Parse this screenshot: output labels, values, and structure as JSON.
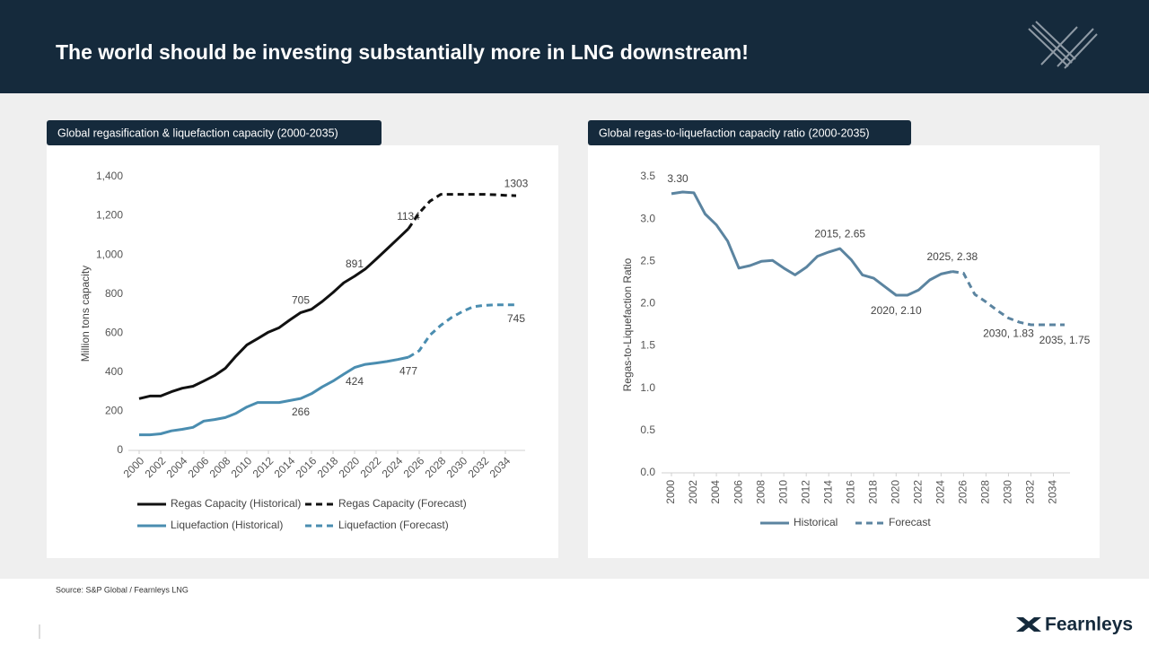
{
  "title": "The world should be investing substantially more in LNG downstream!",
  "source": "Source: S&P Global / Fearnleys LNG",
  "brand": "Fearnleys",
  "chart_data": [
    {
      "type": "line",
      "title": "Global regasification & liquefaction capacity (2000-2035)",
      "ylabel": "Million tons capacity",
      "xlim": [
        2000,
        2035
      ],
      "xticks": [
        2000,
        2002,
        2004,
        2006,
        2008,
        2010,
        2012,
        2014,
        2016,
        2018,
        2020,
        2022,
        2024,
        2026,
        2028,
        2030,
        2032,
        2034
      ],
      "ylim": [
        0,
        1400
      ],
      "yticks": [
        0,
        200,
        400,
        600,
        800,
        {
          "value": 1000,
          "label": "1,000"
        },
        {
          "value": 1200,
          "label": "1,200"
        },
        {
          "value": 1400,
          "label": "1,400"
        }
      ],
      "series": [
        {
          "name": "Regas Capacity (Historical)",
          "color": "#111111",
          "dash": false,
          "label_position": "above",
          "data_labels_x": [
            2015,
            2020,
            2025
          ],
          "x": [
            2000,
            2001,
            2002,
            2003,
            2004,
            2005,
            2006,
            2007,
            2008,
            2009,
            2010,
            2011,
            2012,
            2013,
            2014,
            2015,
            2016,
            2017,
            2018,
            2019,
            2020,
            2021,
            2022,
            2023,
            2024,
            2025
          ],
          "values": [
            265,
            278,
            278,
            300,
            318,
            328,
            355,
            383,
            420,
            483,
            540,
            572,
            605,
            628,
            668,
            705,
            722,
            762,
            808,
            858,
            891,
            928,
            978,
            1030,
            1082,
            1134
          ]
        },
        {
          "name": "Regas Capacity (Forecast)",
          "color": "#111111",
          "dash": true,
          "label_position": "above",
          "data_labels_x": [
            2035
          ],
          "x": [
            2025,
            2026,
            2027,
            2028,
            2029,
            2030,
            2031,
            2032,
            2033,
            2034,
            2035
          ],
          "values": [
            1134,
            1215,
            1275,
            1310,
            1310,
            1310,
            1310,
            1310,
            1308,
            1305,
            1303
          ]
        },
        {
          "name": "Liquefaction (Historical)",
          "color": "#4a8db0",
          "dash": false,
          "label_position": "below",
          "data_labels_x": [
            2015,
            2020,
            2025
          ],
          "x": [
            2000,
            2001,
            2002,
            2003,
            2004,
            2005,
            2006,
            2007,
            2008,
            2009,
            2010,
            2011,
            2012,
            2013,
            2014,
            2015,
            2016,
            2017,
            2018,
            2019,
            2020,
            2021,
            2022,
            2023,
            2024,
            2025
          ],
          "values": [
            80,
            80,
            85,
            100,
            108,
            118,
            150,
            158,
            168,
            190,
            222,
            245,
            245,
            245,
            255,
            266,
            290,
            325,
            355,
            390,
            424,
            440,
            447,
            455,
            465,
            477
          ]
        },
        {
          "name": "Liquefaction (Forecast)",
          "color": "#4a8db0",
          "dash": true,
          "label_position": "below",
          "data_labels_x": [
            2035
          ],
          "x": [
            2025,
            2026,
            2027,
            2028,
            2029,
            2030,
            2031,
            2032,
            2033,
            2034,
            2035
          ],
          "values": [
            477,
            510,
            590,
            640,
            680,
            710,
            735,
            742,
            745,
            745,
            745
          ]
        }
      ]
    },
    {
      "type": "line",
      "title": "Global regas-to-liquefaction capacity ratio (2000-2035)",
      "ylabel": "Regas-to-Liquefaction Ratio",
      "xlim": [
        2000,
        2035
      ],
      "xticks": [
        2000,
        2002,
        2004,
        2006,
        2008,
        2010,
        2012,
        2014,
        2016,
        2018,
        2020,
        2022,
        2024,
        2026,
        2028,
        2030,
        2032,
        2034
      ],
      "ylim": [
        0,
        3.5
      ],
      "yticks": [
        {
          "value": 0,
          "label": "0.0"
        },
        0.5,
        {
          "value": 1,
          "label": "1.0"
        },
        1.5,
        {
          "value": 2,
          "label": "2.0"
        },
        2.5,
        {
          "value": 3,
          "label": "3.0"
        },
        3.5
      ],
      "series": [
        {
          "name": "Historical",
          "color": "#5b84a0",
          "dash": false,
          "x": [
            2000,
            2001,
            2002,
            2003,
            2004,
            2005,
            2006,
            2007,
            2008,
            2009,
            2010,
            2011,
            2012,
            2013,
            2014,
            2015,
            2016,
            2017,
            2018,
            2019,
            2020,
            2021,
            2022,
            2023,
            2024,
            2025
          ],
          "values": [
            3.3,
            3.32,
            3.31,
            3.06,
            2.93,
            2.74,
            2.42,
            2.45,
            2.5,
            2.51,
            2.42,
            2.34,
            2.43,
            2.56,
            2.61,
            2.65,
            2.52,
            2.34,
            2.3,
            2.2,
            2.1,
            2.1,
            2.16,
            2.28,
            2.35,
            2.38
          ],
          "value_labels": [
            "3.30",
            null,
            null,
            null,
            null,
            null,
            null,
            null,
            null,
            null,
            null,
            null,
            null,
            null,
            null,
            "2015, 2.65",
            null,
            null,
            null,
            null,
            "2020, 2.10",
            null,
            null,
            null,
            null,
            "2025, 2.38"
          ]
        },
        {
          "name": "Forecast",
          "color": "#5b84a0",
          "dash": true,
          "x": [
            2025,
            2026,
            2027,
            2028,
            2029,
            2030,
            2031,
            2032,
            2033,
            2034,
            2035
          ],
          "values": [
            2.38,
            2.36,
            2.11,
            2.02,
            1.92,
            1.83,
            1.78,
            1.75,
            1.75,
            1.75,
            1.75
          ],
          "value_labels": [
            null,
            null,
            null,
            null,
            null,
            "2030, 1.83",
            null,
            null,
            null,
            null,
            "2035, 1.75"
          ]
        }
      ]
    }
  ]
}
